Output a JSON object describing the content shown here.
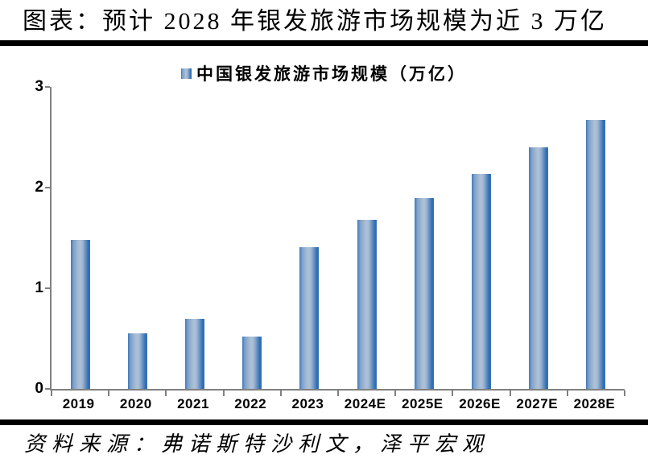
{
  "header": {
    "title": "图表：预计 2028 年银发旅游市场规模为近 3 万亿"
  },
  "legend": {
    "label": "中国银发旅游市场规模（万亿）",
    "marker_icon": "bar-series-swatch"
  },
  "footer": {
    "source": "资料来源：弗诺斯特沙利文，泽平宏观"
  },
  "colors": {
    "bar_edge": "#2A6BB0",
    "bar_center": "#B0C1D6",
    "axis": "#808080",
    "rule": "#000000",
    "text": "#000000"
  },
  "chart_data": {
    "type": "bar",
    "title": "中国银发旅游市场规模（万亿）",
    "categories": [
      "2019",
      "2020",
      "2021",
      "2022",
      "2023",
      "2024E",
      "2025E",
      "2026E",
      "2027E",
      "2028E"
    ],
    "values": [
      1.48,
      0.55,
      0.7,
      0.52,
      1.41,
      1.68,
      1.9,
      2.14,
      2.4,
      2.67
    ],
    "xlabel": "",
    "ylabel": "",
    "ylim": [
      0,
      3
    ],
    "y_ticks": [
      0,
      1,
      2,
      3
    ],
    "grid": false,
    "legend_position": "top-center"
  }
}
